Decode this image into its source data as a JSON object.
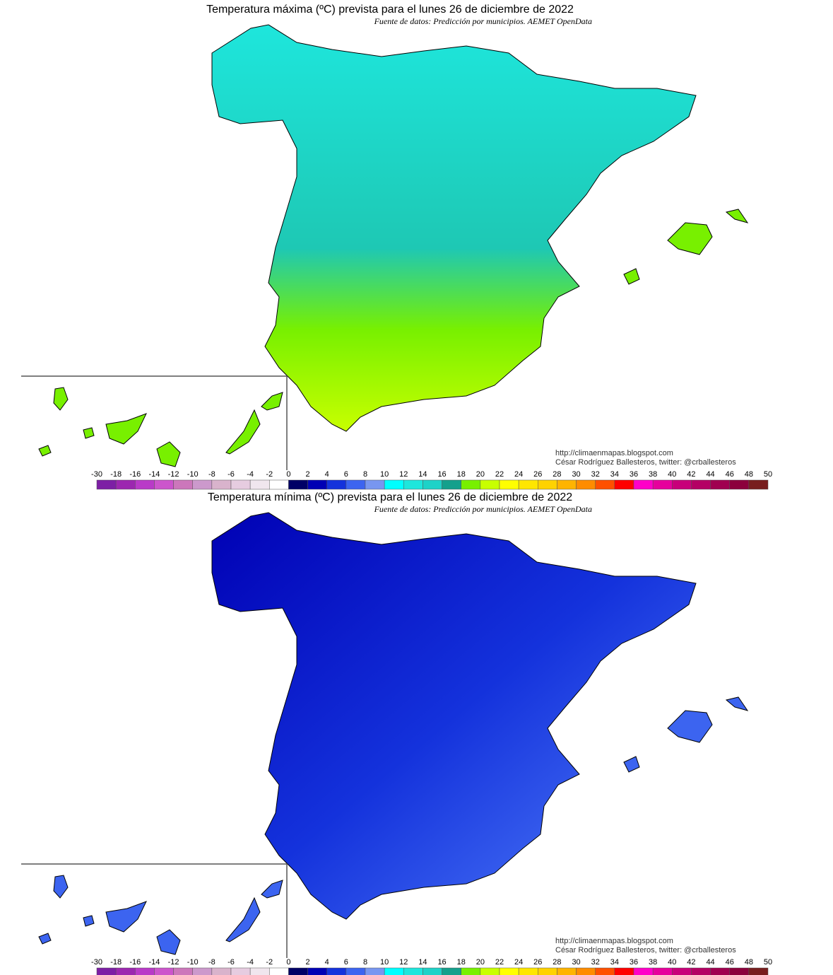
{
  "maps": [
    {
      "title": "Temperatura máxima (ºC) prevista para el lunes 26 de diciembre de 2022",
      "source": "Fuente de datos: Predicción por municipios. AEMET OpenData",
      "credit_url": "http://climaenmapas.blogspot.com",
      "credit_author": "César Rodríguez Ballesteros, twitter: @crballesteros"
    },
    {
      "title": "Temperatura mínima (ºC) prevista para el lunes 26 de diciembre de 2022",
      "source": "Fuente de datos: Predicción por municipios. AEMET OpenData",
      "credit_url": "http://climaenmapas.blogspot.com",
      "credit_author": "César Rodríguez Ballesteros, twitter: @crballesteros"
    }
  ],
  "colorbar": {
    "ticks": [
      -30,
      -18,
      -16,
      -14,
      -12,
      -10,
      -8,
      -6,
      -4,
      -2,
      0,
      2,
      4,
      6,
      8,
      10,
      12,
      14,
      16,
      18,
      20,
      22,
      24,
      26,
      28,
      30,
      32,
      34,
      36,
      38,
      40,
      42,
      44,
      46,
      48,
      50
    ],
    "colors": [
      "#7d1fa5",
      "#9c27b0",
      "#b93ac8",
      "#cc55cc",
      "#cc77bb",
      "#cc99cc",
      "#d9b3cc",
      "#e6cce0",
      "#f0e6ee",
      "#ffffff",
      "#000066",
      "#0000b4",
      "#1432dc",
      "#3c64f0",
      "#7896f0",
      "#00ffff",
      "#1ee6dc",
      "#1ed2c8",
      "#14a08c",
      "#78f000",
      "#c8ff00",
      "#ffff00",
      "#ffe600",
      "#ffd200",
      "#ffb400",
      "#ff8c00",
      "#ff5000",
      "#ff0000",
      "#ff00c8",
      "#e6009c",
      "#c8007a",
      "#b40064",
      "#a00050",
      "#8c003c",
      "#781e1e"
    ]
  }
}
